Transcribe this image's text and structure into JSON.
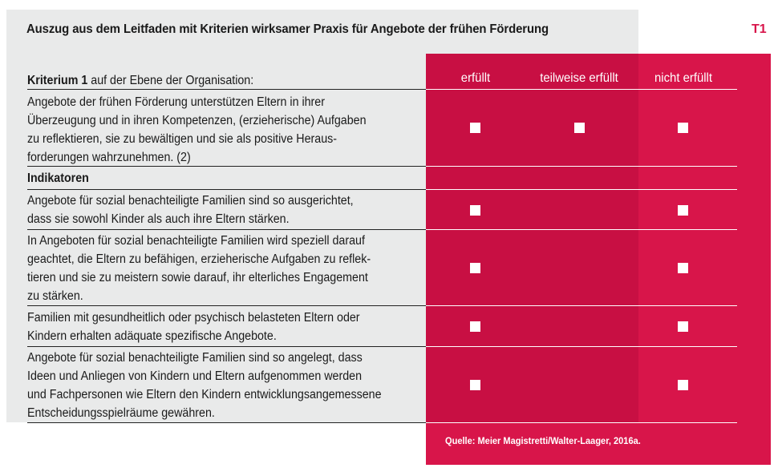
{
  "header": {
    "title": "Auszug aus dem Leitfaden mit Kriterien wirksamer Praxis für Angebote der frühen Förderung",
    "code": "T1"
  },
  "columns": [
    "erfüllt",
    "teilweise erfüllt",
    "nicht erfüllt"
  ],
  "criterion": {
    "label_bold": "Kriterium 1",
    "label_rest": " auf der Ebene der Organisation:",
    "text": "Angebote der frühen Förderung unterstützen Eltern in ihrer\nÜberzeugung und in ihren Kompetenzen, (erzieherische) Aufgaben\nzu reflektieren, sie zu bewältigen und sie als positive Heraus-\nforderungen wahrzunehmen. (2)"
  },
  "indicators_heading": "Indikatoren",
  "indicators": [
    "Angebote für sozial benachteiligte Familien sind so ausgerichtet,\ndass sie sowohl Kinder als auch ihre Eltern stärken.",
    "In Angeboten für sozial benachteiligte Familien wird speziell darauf\ngeachtet, die Eltern zu befähigen, erzieherische Aufgaben zu reflek-\ntieren und sie zu meistern sowie darauf, ihr elterliches Engagement\nzu stärken.",
    "Familien mit gesundheitlich oder psychisch belasteten Eltern oder\nKindern erhalten adäquate spezifische Angebote.",
    "Angebote für sozial benachteiligte Familien sind so angelegt, dass\nIdeen und Anliegen von Kindern und Eltern aufgenommen werden\nund Fachpersonen wie Eltern den Kindern entwicklungsangemessene\nEntscheidungsspielräume gewähren."
  ],
  "source": "Quelle: Meier Magistretti/Walter-Laager, 2016a."
}
